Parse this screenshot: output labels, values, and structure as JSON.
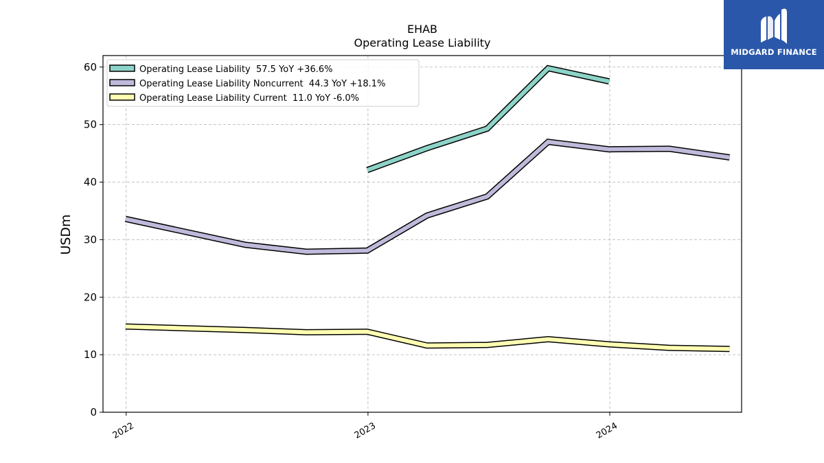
{
  "chart_data": {
    "type": "line",
    "title": "EHAB",
    "subtitle": "Operating Lease Liability",
    "ylabel": "USDm",
    "xlabel": "",
    "ylim": [
      0,
      62
    ],
    "yticks": [
      0,
      10,
      20,
      30,
      40,
      50,
      60
    ],
    "xlim": [
      "2021-11-27",
      "2024-07-18"
    ],
    "xticks": [
      {
        "date": "2022-01-01",
        "label": "2022"
      },
      {
        "date": "2023-01-01",
        "label": "2023"
      },
      {
        "date": "2024-01-01",
        "label": "2024"
      }
    ],
    "grid": true,
    "legend_position": "top-left",
    "series": [
      {
        "name": "Operating Lease Liability  57.5 YoY +36.6%",
        "color": "#8dd3c7",
        "points": [
          {
            "x": "2022-12-31",
            "y": 42.1
          },
          {
            "x": "2023-03-31",
            "y": 45.9
          },
          {
            "x": "2023-06-30",
            "y": 49.3
          },
          {
            "x": "2023-09-30",
            "y": 59.8
          },
          {
            "x": "2023-12-31",
            "y": 57.5
          }
        ]
      },
      {
        "name": "Operating Lease Liability Noncurrent  44.3 YoY +18.1%",
        "color": "#bebada",
        "points": [
          {
            "x": "2021-12-31",
            "y": 33.6
          },
          {
            "x": "2022-06-30",
            "y": 29.1
          },
          {
            "x": "2022-09-30",
            "y": 27.9
          },
          {
            "x": "2022-12-31",
            "y": 28.1
          },
          {
            "x": "2023-03-31",
            "y": 34.2
          },
          {
            "x": "2023-06-30",
            "y": 37.5
          },
          {
            "x": "2023-09-30",
            "y": 47.0
          },
          {
            "x": "2023-12-31",
            "y": 45.7
          },
          {
            "x": "2024-03-31",
            "y": 45.8
          },
          {
            "x": "2024-06-30",
            "y": 44.3
          }
        ]
      },
      {
        "name": "Operating Lease Liability Current  11.0 YoY -6.0%",
        "color": "#ffffb3",
        "points": [
          {
            "x": "2021-12-31",
            "y": 14.9
          },
          {
            "x": "2022-06-30",
            "y": 14.3
          },
          {
            "x": "2022-09-30",
            "y": 13.9
          },
          {
            "x": "2022-12-31",
            "y": 14.0
          },
          {
            "x": "2023-03-31",
            "y": 11.6
          },
          {
            "x": "2023-06-30",
            "y": 11.7
          },
          {
            "x": "2023-09-30",
            "y": 12.7
          },
          {
            "x": "2023-12-31",
            "y": 11.8
          },
          {
            "x": "2024-03-31",
            "y": 11.2
          },
          {
            "x": "2024-06-30",
            "y": 11.0
          }
        ]
      }
    ]
  },
  "logo": {
    "text": "MIDGARD FINANCE",
    "background": "#2a57a9"
  }
}
